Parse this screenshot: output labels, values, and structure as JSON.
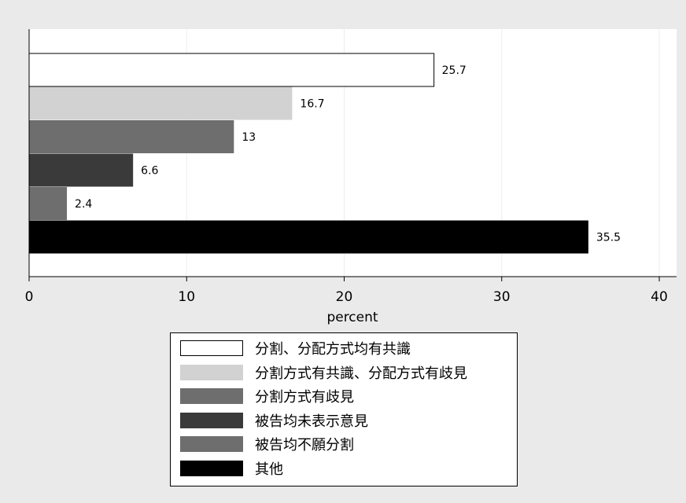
{
  "chart_data": {
    "type": "bar",
    "orientation": "horizontal",
    "xlabel": "percent",
    "xlim": [
      0,
      40
    ],
    "xticks": [
      0,
      10,
      20,
      30,
      40
    ],
    "grid": true,
    "legend_placement": "bottom",
    "series": [
      {
        "name": "分割、分配方式均有共識",
        "value": 25.7,
        "label": "25.7",
        "color": "#ffffff"
      },
      {
        "name": "分割方式有共識、分配方式有歧見",
        "value": 16.7,
        "label": "16.7",
        "color": "#d2d2d2"
      },
      {
        "name": "分割方式有歧見",
        "value": 13,
        "label": "13",
        "color": "#6e6e6e"
      },
      {
        "name": "被告均未表示意見",
        "value": 6.6,
        "label": "6.6",
        "color": "#3a3a3a"
      },
      {
        "name": "被告均不願分割",
        "value": 2.4,
        "label": "2.4",
        "color": "#6e6e6e"
      },
      {
        "name": "其他",
        "value": 35.5,
        "label": "35.5",
        "color": "#000000"
      }
    ]
  }
}
